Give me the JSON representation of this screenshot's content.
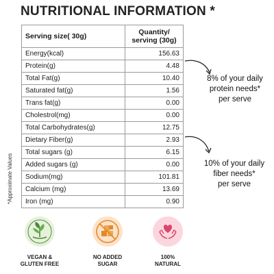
{
  "title": "NUTRITIONAL INFORMATION *",
  "side_note": "*Approximate Values",
  "table": {
    "header_name": "Serving size( 30g)",
    "header_qty_line1": "Quantity/",
    "header_qty_line2": "serving (30g)",
    "rows": [
      {
        "name": "Energy(kcal)",
        "value": "156.63"
      },
      {
        "name": "Protein(g)",
        "value": "4.48"
      },
      {
        "name": "Total Fat(g)",
        "value": "10.40"
      },
      {
        "name": "Saturated fat(g)",
        "value": "1.56"
      },
      {
        "name": "Trans fat(g)",
        "value": "0.00"
      },
      {
        "name": "Cholestrol(mg)",
        "value": "0.00"
      },
      {
        "name": "Total Carbohydrates(g)",
        "value": "12.75"
      },
      {
        "name": "Dietary  Fiber(g)",
        "value": "2.93"
      },
      {
        "name": "Total sugars (g)",
        "value": "6.15"
      },
      {
        "name": "Added sugars (g)",
        "value": "0.00"
      },
      {
        "name": "Sodium(mg)",
        "value": "101.81"
      },
      {
        "name": "Calcium (mg)",
        "value": "13.69"
      },
      {
        "name": "Iron (mg)",
        "value": "0.90"
      }
    ]
  },
  "callouts": {
    "protein": {
      "line1": "8% of your daily",
      "line2": "protein needs*",
      "line3": "per serve"
    },
    "fiber": {
      "line1": "10% of your daily",
      "line2": "fiber needs*",
      "line3": "per serve"
    }
  },
  "badges": [
    {
      "line1": "VEGAN &",
      "line2": "GLUTEN FREE",
      "icon": "vegan-leaf-icon"
    },
    {
      "line1": "NO ADDED",
      "line2": "SUGAR",
      "icon": "no-sugar-icon"
    },
    {
      "line1": "100%",
      "line2": "NATURAL",
      "icon": "heart-hands-icon"
    }
  ],
  "colors": {
    "vegan_bg": "#e6f1dc",
    "vegan_accent": "#4a8a3a",
    "sugar_bg": "#fde2c8",
    "sugar_accent": "#e08a2e",
    "natural_bg": "#fbd7dd",
    "natural_accent": "#d9476a"
  }
}
